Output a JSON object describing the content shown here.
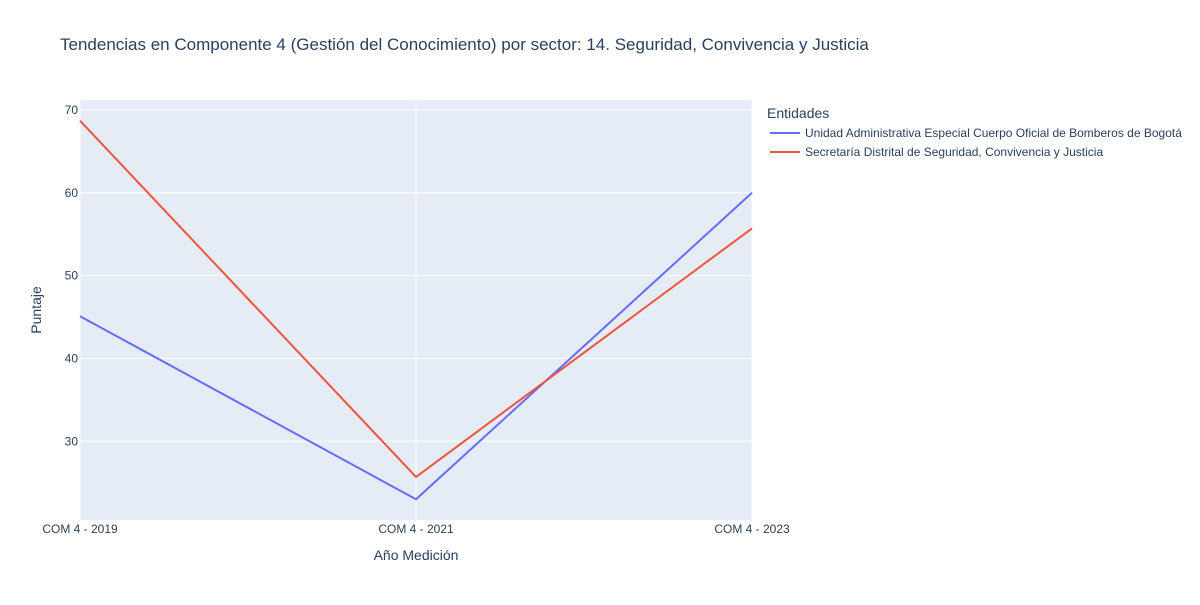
{
  "chart_data": {
    "type": "line",
    "title": "Tendencias en Componente 4 (Gestión del Conocimiento) por sector: 14. Seguridad, Convivencia y Justicia",
    "xlabel": "Año Medición",
    "ylabel": "Puntaje",
    "categories": [
      "COM 4 - 2019",
      "COM 4 - 2021",
      "COM 4 - 2023"
    ],
    "ylim": [
      20.5,
      71.2
    ],
    "yticks": [
      30,
      40,
      50,
      60,
      70
    ],
    "grid": true,
    "legend": {
      "title": "Entidades",
      "placement": "top-right"
    },
    "series": [
      {
        "name": "Unidad Administrativa Especial Cuerpo Oficial de Bomberos de Bogotá",
        "color": "#636efa",
        "values": [
          45.1,
          23.0,
          60.0
        ]
      },
      {
        "name": "Secretaría Distrital de Seguridad, Convivencia y Justicia",
        "color": "#ef553b",
        "values": [
          68.7,
          25.7,
          55.7
        ]
      }
    ]
  },
  "colors": {
    "plot_background": "#e5ecf6",
    "grid": "#ffffff",
    "text": "#2a3f5f"
  }
}
